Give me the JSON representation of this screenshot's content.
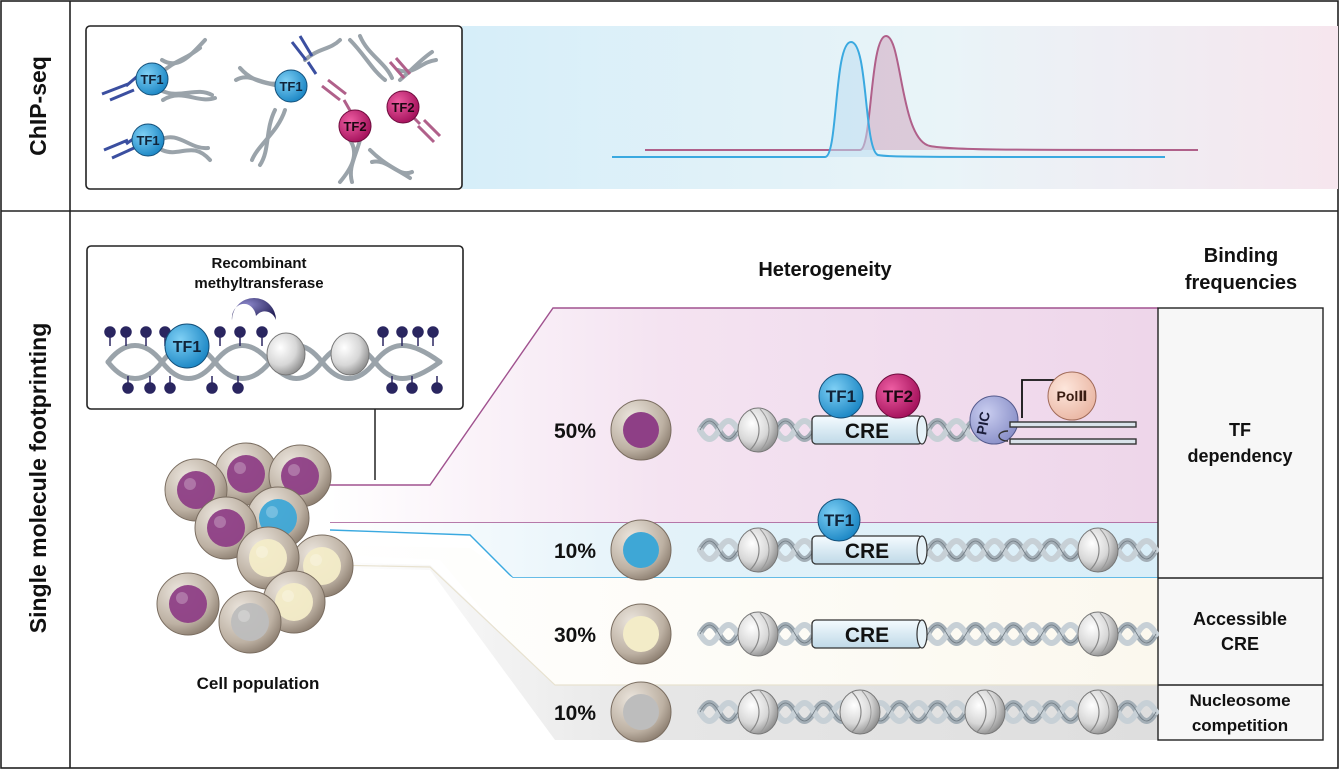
{
  "rows": {
    "top_label": "ChIP-seq",
    "bottom_label": "Single molecule footprinting"
  },
  "chip": {
    "tf1": "TF1",
    "tf2": "TF2"
  },
  "smf": {
    "enzyme_line1": "Recombinant",
    "enzyme_line2": "methyltransferase",
    "tf1": "TF1",
    "cell_population": "Cell population"
  },
  "heterogeneity": {
    "header": "Heterogeneity",
    "states": [
      {
        "pct": "50%",
        "cre": "CRE",
        "tf1": "TF1",
        "tf2": "TF2",
        "pic": "PIC",
        "pol": "PolⅡ"
      },
      {
        "pct": "10%",
        "cre": "CRE",
        "tf1": "TF1"
      },
      {
        "pct": "30%",
        "cre": "CRE"
      },
      {
        "pct": "10%"
      }
    ]
  },
  "binding": {
    "header_line1": "Binding",
    "header_line2": "frequencies",
    "tf_dep_line1": "TF",
    "tf_dep_line2": "dependency",
    "acc_line1": "Accessible",
    "acc_line2": "CRE",
    "nuc_line1": "Nucleosome",
    "nuc_line2": "competition"
  },
  "colors": {
    "tf1": "#2f9fd8",
    "tf2": "#c2186b",
    "peak_blue": "#3aa9e0",
    "peak_pink": "#b0608a",
    "methyl": "#2a2660",
    "cell_purple": "#8e3f86",
    "cell_blue": "#3ea7d6",
    "cell_cream": "#f3ecc8",
    "cell_grey": "#bdbdbd"
  }
}
